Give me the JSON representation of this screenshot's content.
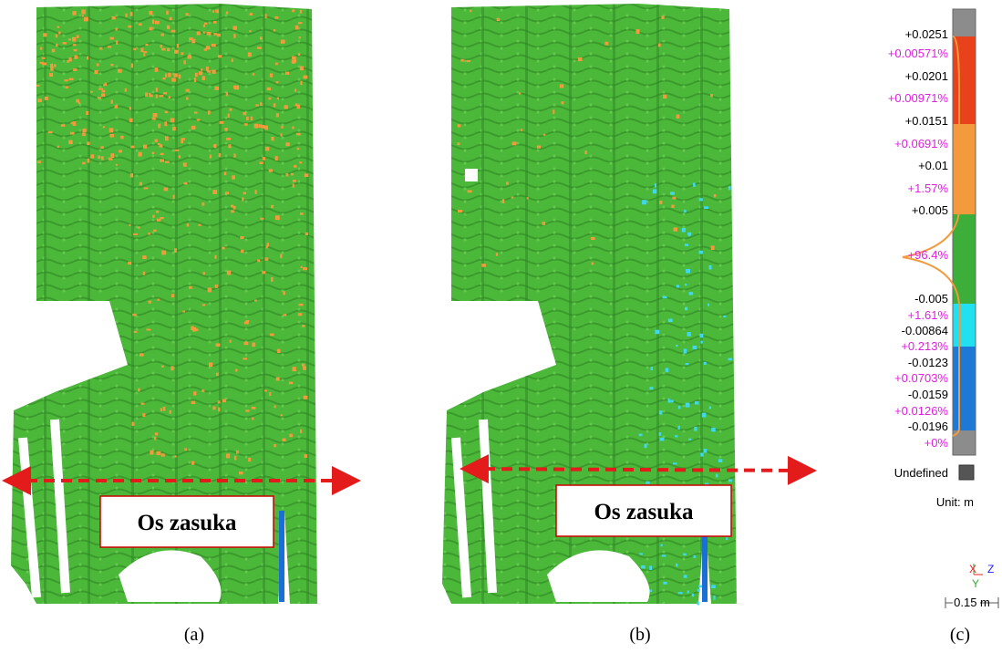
{
  "panels": [
    {
      "annotation": "Os zasuka",
      "caption": "(a)"
    },
    {
      "annotation": "Os zasuka",
      "caption": "(b)"
    }
  ],
  "legend": {
    "caption": "(c)",
    "values": [
      "+0.0251",
      "+0.0201",
      "+0.0151",
      "+0.01",
      "+0.005",
      "-0.005",
      "-0.00864",
      "-0.0123",
      "-0.0159",
      "-0.0196"
    ],
    "percentages": [
      "+0.00571%",
      "+0.00971%",
      "+0.0691%",
      "+1.57%",
      "+96.4%",
      "+1.61%",
      "+0.213%",
      "+0.0703%",
      "+0.0126%",
      "+0%"
    ],
    "undefined": "Undefined",
    "unit": "Unit: m",
    "axes": {
      "x": "X",
      "z": "Z",
      "y": "Y"
    },
    "scale": "0.15 m"
  }
}
